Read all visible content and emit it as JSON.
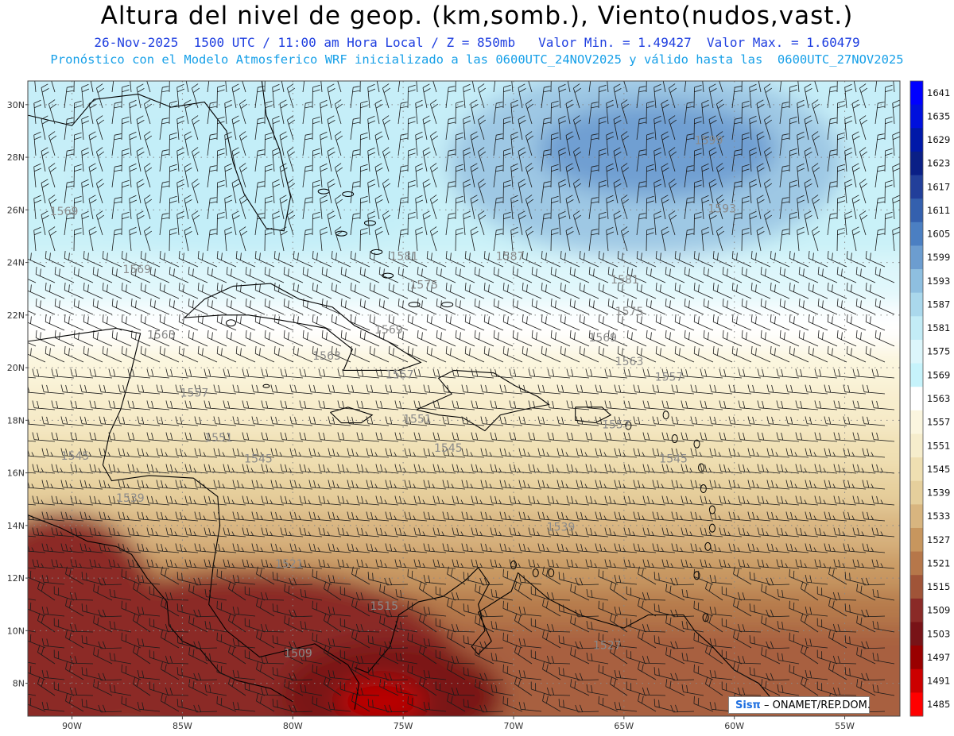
{
  "header": {
    "title": "Altura del nivel de geop. (km,somb.), Viento(nudos,vast.)",
    "line1": "26-Nov-2025  1500 UTC / 11:00 am Hora Local / Z = 850mb   Valor Min. = 1.49427  Valor Max. = 1.60479",
    "line2": "Pronóstico con el Modelo Atmosferico WRF inicializado a las 0600UTC_24NOV2025 y válido hasta las  0600UTC_27NOV2025"
  },
  "map": {
    "lat_labels": [
      "30N",
      "28N",
      "26N",
      "24N",
      "22N",
      "20N",
      "18N",
      "16N",
      "14N",
      "12N",
      "10N",
      "8N"
    ],
    "lon_labels": [
      "90W",
      "85W",
      "80W",
      "75W",
      "70W",
      "65W",
      "60W",
      "55W"
    ],
    "contour_labels": [
      {
        "text": "1599",
        "lat": 28.5,
        "lon": -61.8
      },
      {
        "text": "1593",
        "lat": 25.9,
        "lon": -61.2
      },
      {
        "text": "1587",
        "lat": 24.1,
        "lon": -70.8
      },
      {
        "text": "1581",
        "lat": 24.1,
        "lon": -75.6
      },
      {
        "text": "1581",
        "lat": 23.2,
        "lon": -65.6
      },
      {
        "text": "1575",
        "lat": 23.0,
        "lon": -74.7
      },
      {
        "text": "1575",
        "lat": 22.0,
        "lon": -65.4
      },
      {
        "text": "1569",
        "lat": 25.8,
        "lon": -91.0
      },
      {
        "text": "1569",
        "lat": 23.6,
        "lon": -87.7
      },
      {
        "text": "1569",
        "lat": 21.3,
        "lon": -76.3
      },
      {
        "text": "1569",
        "lat": 21.0,
        "lon": -66.6
      },
      {
        "text": "1563",
        "lat": 21.1,
        "lon": -86.6
      },
      {
        "text": "1563",
        "lat": 20.3,
        "lon": -79.1
      },
      {
        "text": "1563",
        "lat": 20.1,
        "lon": -65.4
      },
      {
        "text": "1557",
        "lat": 19.6,
        "lon": -75.8
      },
      {
        "text": "1557",
        "lat": 18.9,
        "lon": -85.1
      },
      {
        "text": "1557",
        "lat": 19.5,
        "lon": -63.6
      },
      {
        "text": "1557",
        "lat": 17.7,
        "lon": -66.0
      },
      {
        "text": "1551",
        "lat": 17.9,
        "lon": -75.0
      },
      {
        "text": "1551",
        "lat": 17.2,
        "lon": -84.0
      },
      {
        "text": "1545",
        "lat": 16.5,
        "lon": -90.5
      },
      {
        "text": "1545",
        "lat": 16.4,
        "lon": -82.2
      },
      {
        "text": "1545",
        "lat": 16.8,
        "lon": -73.6
      },
      {
        "text": "1545",
        "lat": 16.4,
        "lon": -63.4
      },
      {
        "text": "1539",
        "lat": 14.9,
        "lon": -88.0
      },
      {
        "text": "1539",
        "lat": 13.8,
        "lon": -68.5
      },
      {
        "text": "1521",
        "lat": 12.4,
        "lon": -80.8
      },
      {
        "text": "1515",
        "lat": 10.8,
        "lon": -76.5
      },
      {
        "text": "1509",
        "lat": 9.0,
        "lon": -80.4
      },
      {
        "text": "1527",
        "lat": 9.3,
        "lon": -66.4
      }
    ]
  },
  "colorbar": {
    "levels": [
      "1641",
      "1635",
      "1629",
      "1623",
      "1617",
      "1611",
      "1605",
      "1599",
      "1593",
      "1587",
      "1581",
      "1575",
      "1569",
      "1563",
      "1557",
      "1551",
      "1545",
      "1539",
      "1533",
      "1527",
      "1521",
      "1515",
      "1509",
      "1503",
      "1497",
      "1491",
      "1485"
    ],
    "colors": [
      "#0000ff",
      "#0010dd",
      "#0018a8",
      "#0a1f86",
      "#223f9a",
      "#3460ae",
      "#4b7fc2",
      "#6c9dd0",
      "#8ebfe0",
      "#aad8ec",
      "#c3ecf6",
      "#dcf6fb",
      "#c6f3fb",
      "#ffffff",
      "#fbf6df",
      "#f6edcc",
      "#efdfb2",
      "#e5cf9c",
      "#d8b57f",
      "#c7965e",
      "#b6774a",
      "#a05438",
      "#8a2a27",
      "#781317",
      "#990000",
      "#cc0000",
      "#ff0000"
    ]
  },
  "credit": {
    "brand": "Sisπ",
    "text": "– ONAMET/REP.DOM."
  },
  "legend_colors": {
    "title": "#000000",
    "line1": "#1f3fe0",
    "line2": "#17a0e8",
    "land_outline": "#000000",
    "contour": "#a8a8a8"
  }
}
